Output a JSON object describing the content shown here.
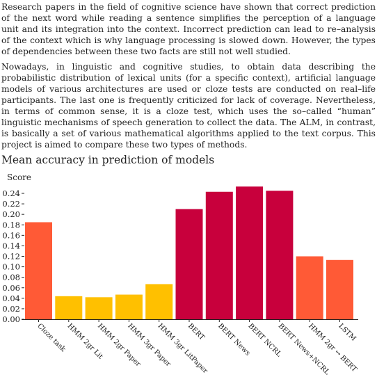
{
  "intro": {
    "paragraph1": "Research papers in the field of cognitive science have shown that correct prediction of the next word while reading a sentence simplifies the perception of a language unit and its integration into the context. Incorrect prediction can lead to re–analysis of the context which is why language processing is slowed down. However, the types of dependencies between these two facts are still not well studied.",
    "paragraph2": "Nowadays, in linguistic and cognitive studies, to obtain data describing the probabilistic distribution of lexical units (for a specific context), artificial language models of various architectures are used or cloze tests are conducted on real–life participants. The last one is frequently criticized for lack of coverage. Nevertheless, in terms of common sense, it is a cloze test, which uses the so–called “human” linguistic mechanisms of speech generation to collect the data. The ALM, in contrast, is basically a set of various mathematical algorithms applied to the text corpus. This project is aimed to compare these two types of methods."
  },
  "chart_data": {
    "type": "bar",
    "title": "Mean accuracy in prediction of models",
    "ylabel": "Score",
    "xlabel": "",
    "ylim": [
      0,
      0.25
    ],
    "yticks": [
      "0.00",
      "0.02",
      "0.04",
      "0.06",
      "0.08",
      "0.10",
      "0.12",
      "0.14",
      "0.16",
      "0.18",
      "0.20",
      "0.22",
      "0.24"
    ],
    "yticks_values": [
      0,
      0.02,
      0.04,
      0.06,
      0.08,
      0.1,
      0.12,
      0.14,
      0.16,
      0.18,
      0.2,
      0.22,
      0.24
    ],
    "categories": [
      "Cloze task",
      "HMM 2gr Lit",
      "HMM 2gr Paper",
      "HMM 3gr Paper",
      "HMM 3gr LitPaper",
      "BERT",
      "BERT News",
      "BERT NCRL",
      "BERT News+NCRL",
      "HMM 2gr ↔ BERT",
      "LSTM"
    ],
    "values": [
      0.185,
      0.044,
      0.042,
      0.047,
      0.067,
      0.21,
      0.243,
      0.253,
      0.245,
      0.12,
      0.113
    ],
    "colors": [
      "#ff5a36",
      "#ffc000",
      "#ffc000",
      "#ffc000",
      "#ffc000",
      "#c8003c",
      "#c8003c",
      "#c8003c",
      "#c8003c",
      "#ff5a36",
      "#ff5a36"
    ],
    "grid": false
  }
}
